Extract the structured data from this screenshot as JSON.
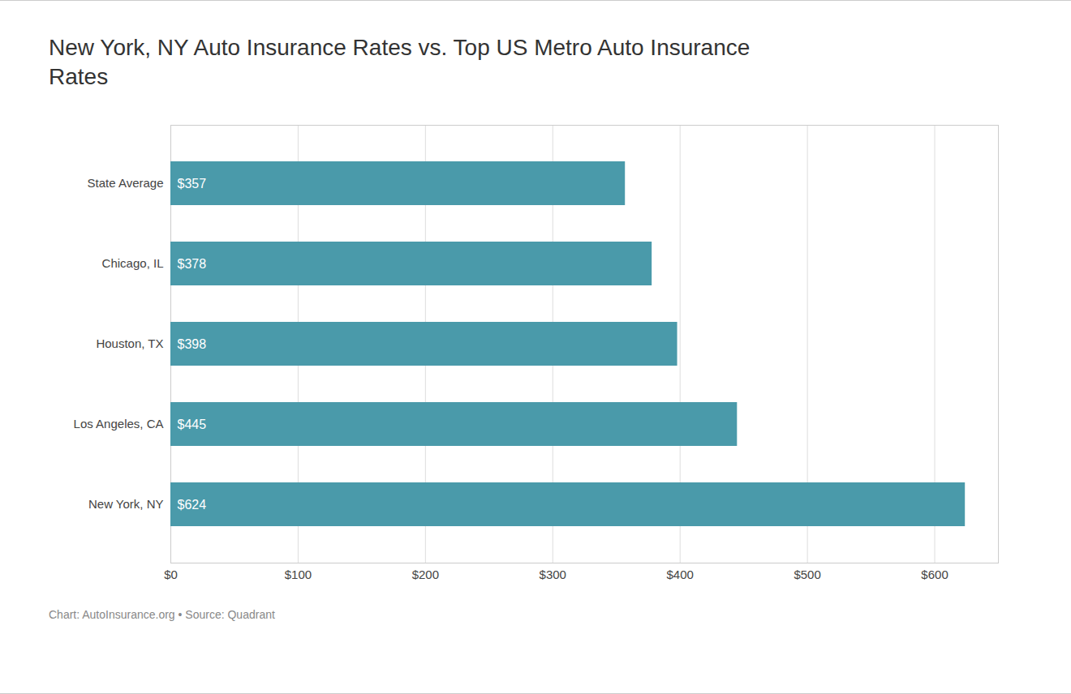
{
  "chart_data": {
    "type": "bar",
    "orientation": "horizontal",
    "title": "New York, NY Auto Insurance Rates vs. Top US Metro Auto Insurance\nRates",
    "caption": "Chart: AutoInsurance.org • Source: Quadrant",
    "categories": [
      "State Average",
      "Chicago, IL",
      "Houston, TX",
      "Los Angeles, CA",
      "New York, NY"
    ],
    "values": [
      357,
      378,
      398,
      445,
      624
    ],
    "value_labels": [
      "$357",
      "$378",
      "$398",
      "$445",
      "$624"
    ],
    "data_labels": true,
    "color": "#4a9aaa",
    "xlim": [
      0,
      650
    ],
    "xticks": [
      {
        "value": 0,
        "label": "$0"
      },
      {
        "value": 100,
        "label": "$100"
      },
      {
        "value": 200,
        "label": "$200"
      },
      {
        "value": 300,
        "label": "$300"
      },
      {
        "value": 400,
        "label": "$400"
      },
      {
        "value": 500,
        "label": "$500"
      },
      {
        "value": 600,
        "label": "$600"
      }
    ],
    "grid": true
  }
}
